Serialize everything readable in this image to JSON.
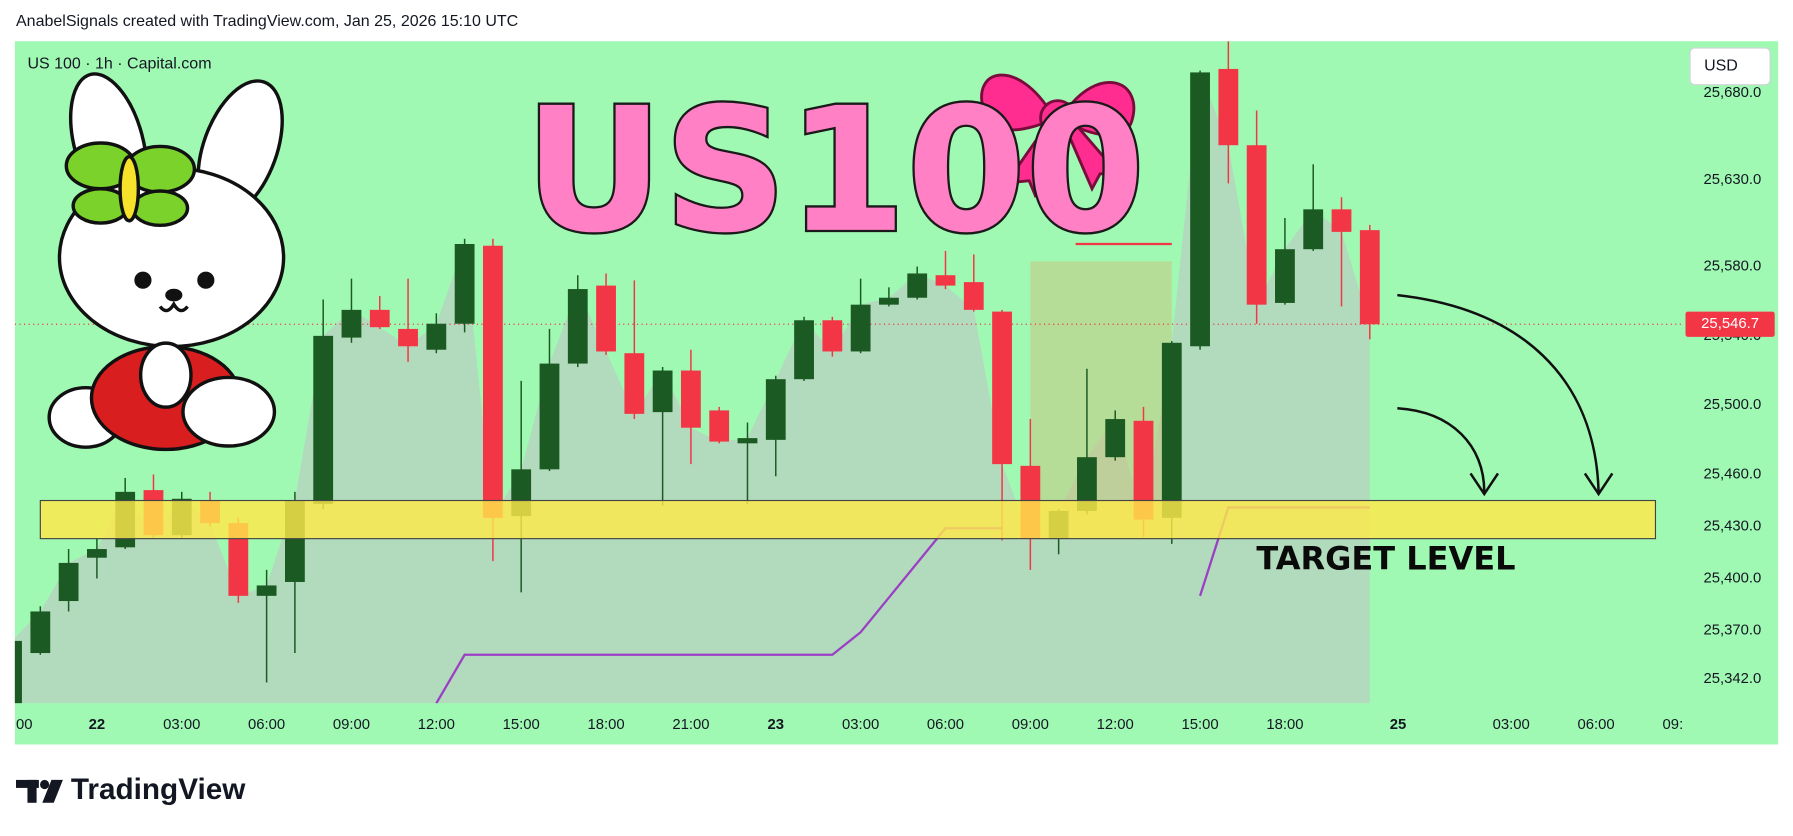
{
  "header": "AnabelSignals created with TradingView.com, Jan 25, 2026 15:10 UTC",
  "footer_logo": "TradingView",
  "chart_data": {
    "type": "candlestick",
    "symbol": "US 100 · 1h · Capital.com",
    "currency": "USD",
    "overlay_title": "US100",
    "annotation": "TARGET LEVEL",
    "background": "#a0f9b3",
    "up_color": "#1b5a22",
    "down_color": "#f23645",
    "area_color": "#b8cfc0",
    "grid": false,
    "xlim": [
      -2.9,
      56
    ],
    "ylim": [
      25328,
      25710
    ],
    "xticks": [
      {
        "value": -3,
        "label": "00"
      },
      {
        "value": 0,
        "label": "22"
      },
      {
        "value": 3,
        "label": "03:00"
      },
      {
        "value": 6,
        "label": "06:00"
      },
      {
        "value": 9,
        "label": "09:00"
      },
      {
        "value": 12,
        "label": "12:00"
      },
      {
        "value": 15,
        "label": "15:00"
      },
      {
        "value": 18,
        "label": "18:00"
      },
      {
        "value": 21,
        "label": "21:00"
      },
      {
        "value": 24,
        "label": "23"
      },
      {
        "value": 27,
        "label": "03:00"
      },
      {
        "value": 30,
        "label": "06:00"
      },
      {
        "value": 33,
        "label": "09:00"
      },
      {
        "value": 36,
        "label": "12:00"
      },
      {
        "value": 39,
        "label": "15:00"
      },
      {
        "value": 42,
        "label": "18:00"
      },
      {
        "value": 46,
        "label": "25"
      },
      {
        "value": 50,
        "label": "03:00"
      },
      {
        "value": 53,
        "label": "06:00"
      },
      {
        "value": 56,
        "label": "09:"
      }
    ],
    "yticks": [
      {
        "value": 25342,
        "label": "25,342.0"
      },
      {
        "value": 25370,
        "label": "25,370.0"
      },
      {
        "value": 25400,
        "label": "25,400.0"
      },
      {
        "value": 25430,
        "label": "25,430.0"
      },
      {
        "value": 25460,
        "label": "25,460.0"
      },
      {
        "value": 25500,
        "label": "25,500.0"
      },
      {
        "value": 25540,
        "label": "25,540.0"
      },
      {
        "value": 25580,
        "label": "25,580.0"
      },
      {
        "value": 25630,
        "label": "25,630.0"
      },
      {
        "value": 25680,
        "label": "25,680.0"
      }
    ],
    "x": [
      -3,
      -2,
      -1,
      0,
      1,
      2,
      3,
      4,
      5,
      6,
      7,
      8,
      9,
      10,
      11,
      12,
      13,
      14,
      15,
      16,
      17,
      18,
      19,
      20,
      21,
      22,
      23,
      24,
      25,
      26,
      27,
      28,
      29,
      30,
      31,
      32,
      33,
      34,
      35,
      36,
      37,
      38,
      39,
      40,
      41,
      42,
      43,
      44,
      45
    ],
    "open": [
      25328,
      25357,
      25387,
      25412,
      25418,
      25451,
      25425,
      25445,
      25432,
      25390,
      25398,
      25443,
      25539,
      25555,
      25544,
      25532,
      25547,
      25592,
      25436,
      25463,
      25524,
      25569,
      25530,
      25496,
      25520,
      25497,
      25478,
      25480,
      25515,
      25549,
      25531,
      25558,
      25562,
      25575,
      25571,
      25554,
      25465,
      25423,
      25439,
      25470,
      25491,
      25435,
      25534,
      25694,
      25650,
      25559,
      25590,
      25613,
      25601
    ],
    "high": [
      25367,
      25384,
      25417,
      25423,
      25458,
      25460,
      25450,
      25450,
      25435,
      25405,
      25450,
      25561,
      25573,
      25563,
      25573,
      25553,
      25596,
      25596,
      25514,
      25544,
      25575,
      25576,
      25572,
      25522,
      25532,
      25499,
      25490,
      25517,
      25551,
      25551,
      25573,
      25568,
      25580,
      25589,
      25587,
      25555,
      25492,
      25440,
      25521,
      25497,
      25499,
      25537,
      25693,
      25710,
      25670,
      25608,
      25639,
      25620,
      25604
    ],
    "low": [
      25328,
      25356,
      25381,
      25400,
      25417,
      25423,
      25423,
      25430,
      25386,
      25340,
      25357,
      25440,
      25536,
      25544,
      25525,
      25530,
      25542,
      25410,
      25392,
      25462,
      25522,
      25529,
      25492,
      25442,
      25466,
      25478,
      25443,
      25459,
      25514,
      25528,
      25530,
      25557,
      25561,
      25567,
      25554,
      25422,
      25405,
      25414,
      25437,
      25468,
      25424,
      25420,
      25532,
      25628,
      25547,
      25558,
      25589,
      25557,
      25538
    ],
    "close": [
      25364,
      25381,
      25409,
      25417,
      25450,
      25425,
      25446,
      25432,
      25390,
      25396,
      25445,
      25540,
      25555,
      25545,
      25534,
      25547,
      25593,
      25435,
      25463,
      25524,
      25567,
      25531,
      25495,
      25520,
      25487,
      25479,
      25481,
      25515,
      25549,
      25531,
      25558,
      25562,
      25576,
      25569,
      25555,
      25466,
      25423,
      25439,
      25470,
      25492,
      25434,
      25536,
      25692,
      25650,
      25558,
      25590,
      25613,
      25600,
      25546.7
    ],
    "price_label": {
      "value": 25546.7,
      "label": "25,546.7"
    },
    "indicator": {
      "color": "#9b3fc4",
      "x": [
        12,
        13,
        26,
        27,
        30,
        32,
        null,
        39,
        40,
        45
      ],
      "values": [
        25328,
        25356,
        25356,
        25369,
        25429,
        25429,
        null,
        25390,
        25441,
        25441
      ]
    },
    "zone": {
      "color": "#ffe94a",
      "x": [
        -2,
        55.1
      ],
      "y": [
        25423,
        25445
      ]
    },
    "position_box": {
      "color": "#c8c682",
      "x": [
        33,
        38
      ],
      "y": [
        25423,
        25583
      ]
    },
    "target_line": {
      "color": "#f23645",
      "x": [
        34.6,
        38
      ],
      "value": 25593
    }
  }
}
